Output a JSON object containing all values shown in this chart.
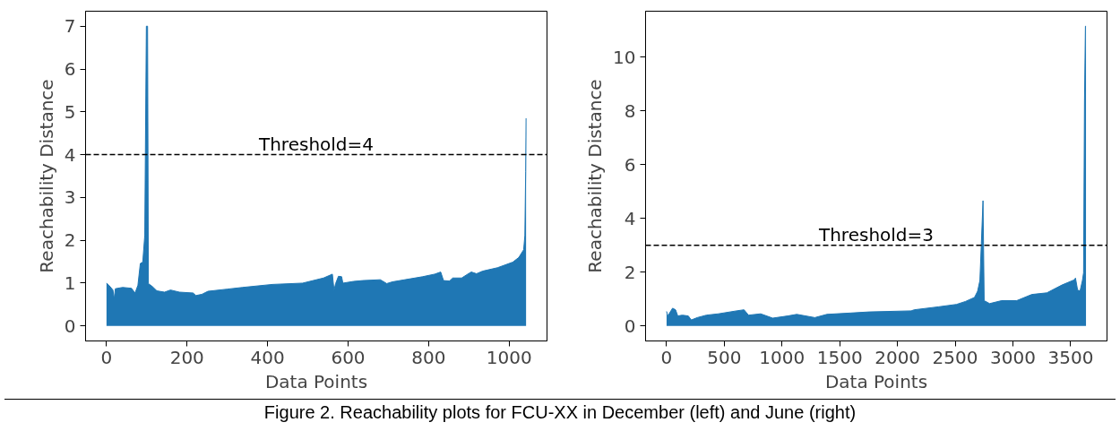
{
  "chart_data": [
    {
      "type": "area",
      "xlabel": "Data Points",
      "ylabel": "Reachability Distance",
      "color": "#1f77b4",
      "x": [
        0,
        6,
        16,
        19,
        22,
        40,
        62,
        71,
        78,
        84,
        90,
        95,
        99,
        102,
        104,
        114,
        125,
        144,
        159,
        181,
        215,
        222,
        237,
        252,
        300,
        338,
        412,
        487,
        539,
        561,
        565,
        569,
        576,
        584,
        587,
        613,
        636,
        680,
        696,
        710,
        785,
        815,
        830,
        837,
        852,
        860,
        882,
        897,
        906,
        919,
        934,
        971,
        1009,
        1024,
        1036,
        1039,
        1041,
        1042
      ],
      "values": [
        1.0,
        0.95,
        0.84,
        0.63,
        0.87,
        0.9,
        0.88,
        0.77,
        0.95,
        1.46,
        1.49,
        2.11,
        7.0,
        7.0,
        0.99,
        0.92,
        0.82,
        0.79,
        0.84,
        0.79,
        0.77,
        0.71,
        0.74,
        0.81,
        0.86,
        0.9,
        0.97,
        1.0,
        1.12,
        1.21,
        0.84,
        0.99,
        1.16,
        1.15,
        1.0,
        1.04,
        1.06,
        1.08,
        0.99,
        1.03,
        1.15,
        1.21,
        1.26,
        1.06,
        1.05,
        1.12,
        1.12,
        1.21,
        1.26,
        1.22,
        1.28,
        1.36,
        1.49,
        1.6,
        1.78,
        2.11,
        3.6,
        4.85
      ],
      "xlim": [
        -52,
        1094
      ],
      "ylim": [
        -0.35,
        7.35
      ],
      "xticks": [
        0,
        200,
        400,
        600,
        800,
        1000
      ],
      "yticks": [
        0,
        1,
        2,
        3,
        4,
        5,
        6,
        7
      ],
      "grid": false,
      "ref_lines": [
        {
          "axis": "y",
          "value": 4,
          "label": "Threshold=4",
          "color": "#000000",
          "line_style": "dashed"
        }
      ],
      "annotations": [
        "Figure 2. Reachability plots for FCU-XX in December (left) and June (right)"
      ]
    },
    {
      "type": "area",
      "xlabel": "Data Points",
      "ylabel": "Reachability Distance",
      "color": "#1f77b4",
      "x": [
        0,
        10,
        26,
        52,
        78,
        97,
        136,
        188,
        214,
        266,
        345,
        449,
        606,
        671,
        710,
        815,
        919,
        1049,
        1128,
        1284,
        1389,
        1597,
        1754,
        2119,
        2145,
        2354,
        2511,
        2589,
        2667,
        2694,
        2714,
        2741,
        2751,
        2798,
        2902,
        3033,
        3164,
        3294,
        3424,
        3529,
        3542,
        3560,
        3581,
        3602,
        3612,
        3620,
        3628,
        3633
      ],
      "values": [
        0.54,
        0.37,
        0.48,
        0.66,
        0.6,
        0.37,
        0.4,
        0.37,
        0.22,
        0.31,
        0.4,
        0.45,
        0.56,
        0.6,
        0.4,
        0.45,
        0.29,
        0.37,
        0.43,
        0.31,
        0.43,
        0.48,
        0.52,
        0.56,
        0.6,
        0.71,
        0.8,
        0.91,
        1.06,
        1.29,
        1.69,
        4.66,
        0.94,
        0.83,
        0.94,
        0.94,
        1.17,
        1.23,
        1.52,
        1.71,
        1.78,
        1.34,
        1.29,
        1.69,
        1.98,
        8.36,
        11.15,
        11.15
      ],
      "xlim": [
        -182,
        3815
      ],
      "ylim": [
        -0.56,
        11.71
      ],
      "xticks": [
        0,
        500,
        1000,
        1500,
        2000,
        2500,
        3000,
        3500
      ],
      "yticks": [
        0,
        2,
        4,
        6,
        8,
        10
      ],
      "grid": false,
      "ref_lines": [
        {
          "axis": "y",
          "value": 3,
          "label": "Threshold=3",
          "color": "#000000",
          "line_style": "dashed"
        }
      ]
    }
  ]
}
